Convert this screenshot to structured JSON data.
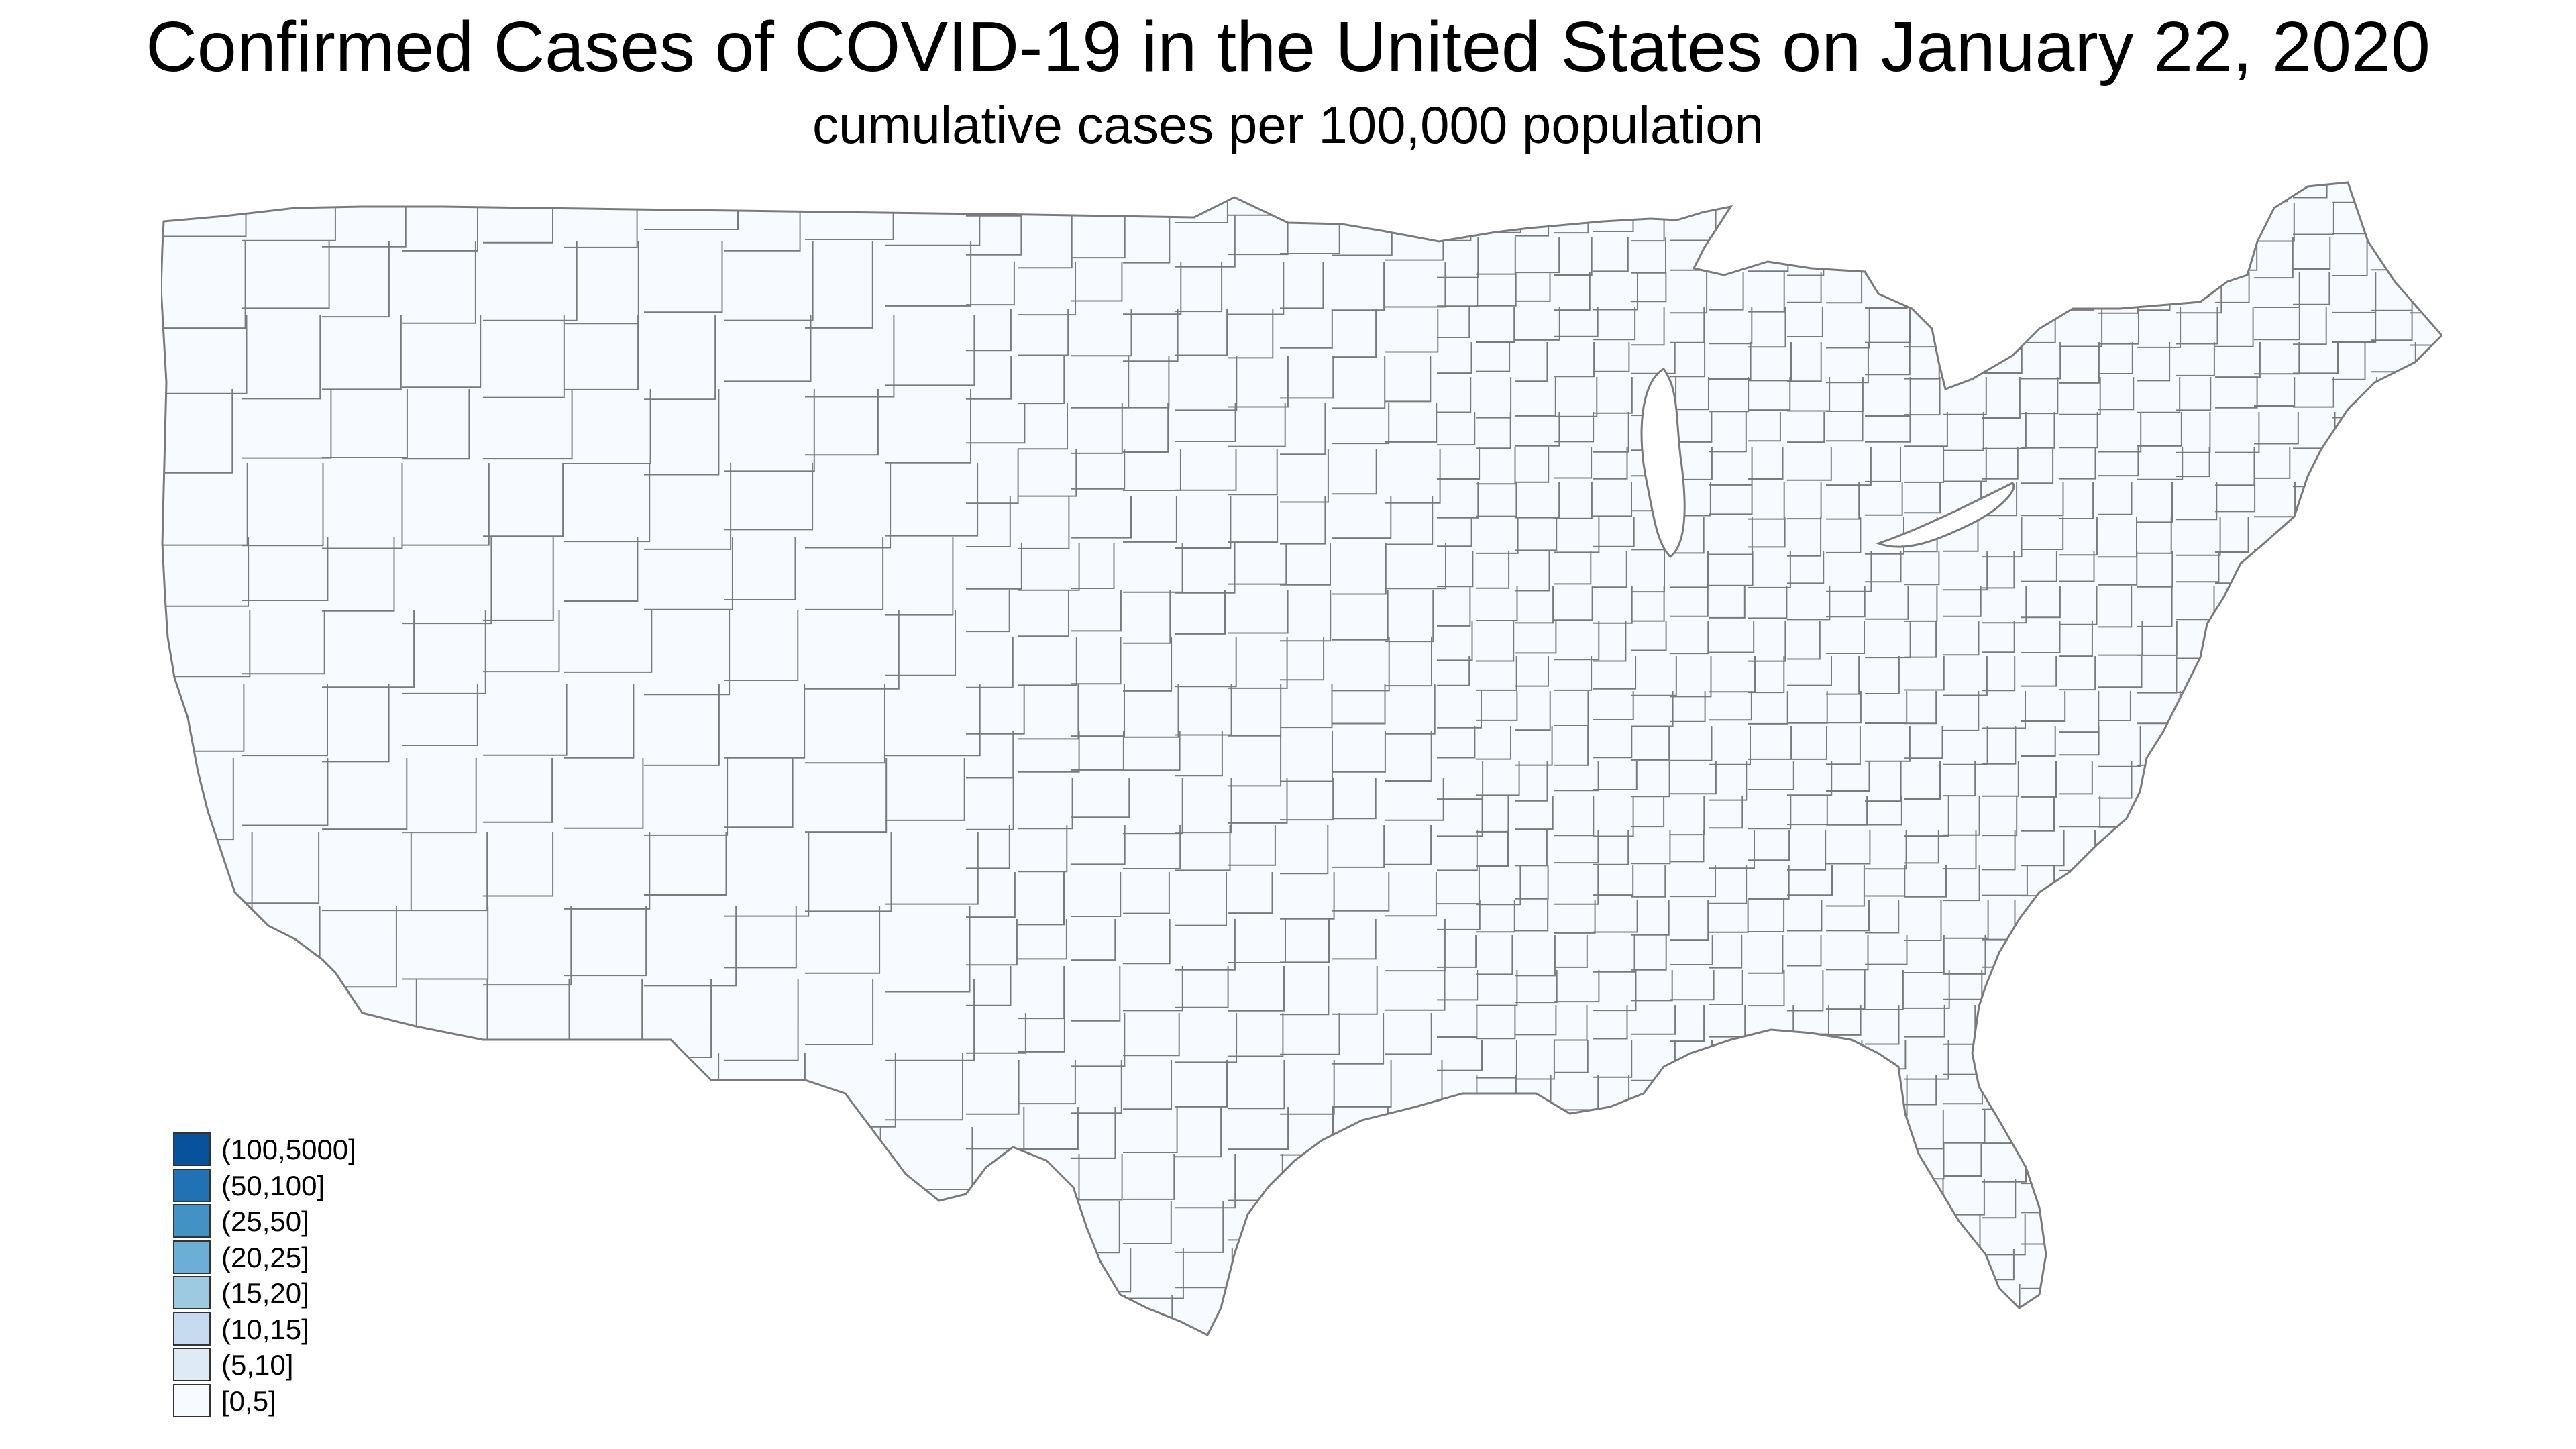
{
  "title": "Confirmed Cases of COVID-19 in the United States on January 22, 2020",
  "subtitle": "cumulative cases per 100,000 population",
  "map": {
    "fill_color": "#f7fbff",
    "border_color": "#7a7a7a"
  },
  "legend": {
    "items": [
      {
        "label": "(100,5000]",
        "color": "#08519c"
      },
      {
        "label": "(50,100]",
        "color": "#2171b5"
      },
      {
        "label": "(25,50]",
        "color": "#4292c6"
      },
      {
        "label": "(20,25]",
        "color": "#6baed6"
      },
      {
        "label": "(15,20]",
        "color": "#9ecae1"
      },
      {
        "label": "(10,15]",
        "color": "#c6dbef"
      },
      {
        "label": "(5,10]",
        "color": "#deebf7"
      },
      {
        "label": "[0,5]",
        "color": "#f7fbff"
      }
    ]
  }
}
